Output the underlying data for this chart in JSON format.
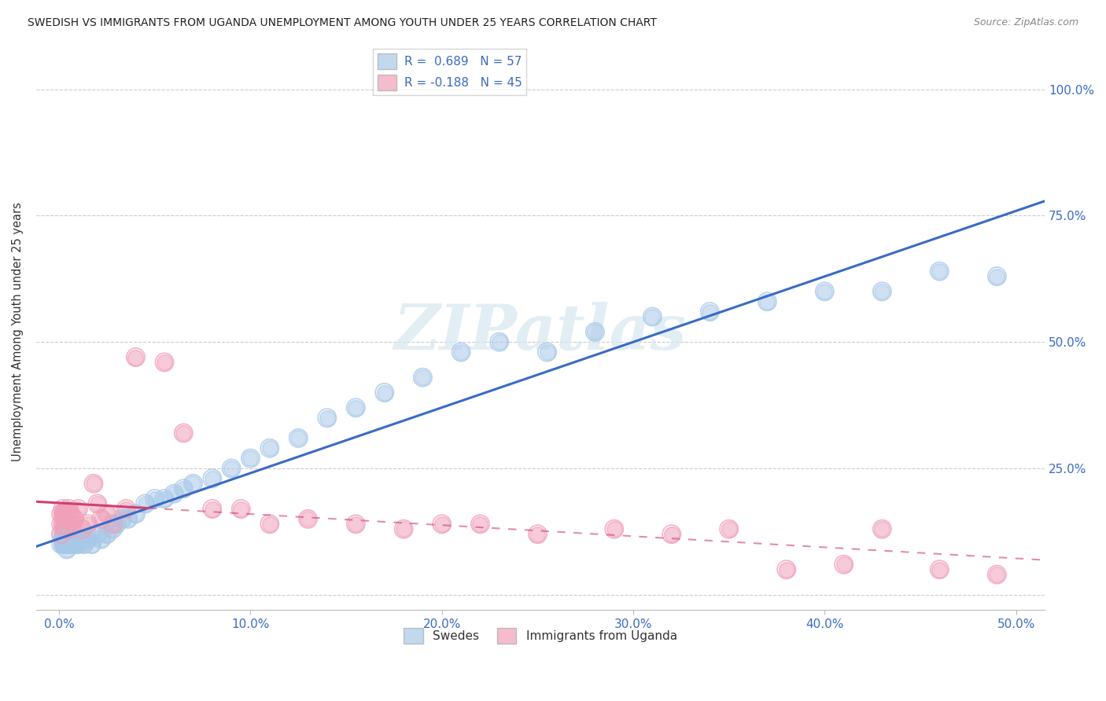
{
  "title": "SWEDISH VS IMMIGRANTS FROM UGANDA UNEMPLOYMENT AMONG YOUTH UNDER 25 YEARS CORRELATION CHART",
  "source": "Source: ZipAtlas.com",
  "ylabel_label": "Unemployment Among Youth under 25 years",
  "legend_bottom": [
    "Swedes",
    "Immigrants from Uganda"
  ],
  "swedes_color": "#a8c8e8",
  "uganda_color": "#f0a0b8",
  "swedes_line_color": "#3a6bc4",
  "uganda_line_color": "#d04070",
  "swedes_R": 0.689,
  "swedes_N": 57,
  "uganda_R": -0.188,
  "uganda_N": 45,
  "watermark": "ZIPatlas",
  "swedes_x": [
    0.001,
    0.001,
    0.002,
    0.002,
    0.003,
    0.003,
    0.003,
    0.004,
    0.004,
    0.004,
    0.005,
    0.005,
    0.006,
    0.006,
    0.007,
    0.008,
    0.009,
    0.01,
    0.011,
    0.012,
    0.013,
    0.015,
    0.017,
    0.02,
    0.022,
    0.025,
    0.028,
    0.03,
    0.033,
    0.036,
    0.04,
    0.045,
    0.05,
    0.055,
    0.06,
    0.065,
    0.07,
    0.08,
    0.09,
    0.1,
    0.11,
    0.125,
    0.14,
    0.155,
    0.17,
    0.19,
    0.21,
    0.23,
    0.255,
    0.28,
    0.31,
    0.34,
    0.37,
    0.4,
    0.43,
    0.46,
    0.49
  ],
  "swedes_y": [
    0.1,
    0.12,
    0.1,
    0.11,
    0.1,
    0.1,
    0.11,
    0.1,
    0.09,
    0.1,
    0.1,
    0.11,
    0.1,
    0.1,
    0.1,
    0.1,
    0.1,
    0.1,
    0.11,
    0.11,
    0.1,
    0.11,
    0.1,
    0.12,
    0.11,
    0.12,
    0.13,
    0.14,
    0.15,
    0.15,
    0.16,
    0.18,
    0.19,
    0.19,
    0.2,
    0.21,
    0.22,
    0.23,
    0.25,
    0.27,
    0.29,
    0.31,
    0.35,
    0.37,
    0.4,
    0.43,
    0.48,
    0.5,
    0.48,
    0.52,
    0.55,
    0.56,
    0.58,
    0.6,
    0.6,
    0.64,
    0.63
  ],
  "uganda_x": [
    0.001,
    0.001,
    0.001,
    0.002,
    0.002,
    0.002,
    0.003,
    0.003,
    0.003,
    0.004,
    0.004,
    0.005,
    0.005,
    0.006,
    0.007,
    0.008,
    0.01,
    0.012,
    0.015,
    0.018,
    0.02,
    0.022,
    0.025,
    0.028,
    0.035,
    0.04,
    0.055,
    0.065,
    0.08,
    0.095,
    0.11,
    0.13,
    0.155,
    0.18,
    0.2,
    0.22,
    0.25,
    0.29,
    0.32,
    0.35,
    0.38,
    0.41,
    0.43,
    0.46,
    0.49
  ],
  "uganda_y": [
    0.14,
    0.16,
    0.12,
    0.17,
    0.14,
    0.16,
    0.13,
    0.15,
    0.16,
    0.14,
    0.15,
    0.17,
    0.13,
    0.16,
    0.14,
    0.15,
    0.17,
    0.13,
    0.14,
    0.22,
    0.18,
    0.15,
    0.16,
    0.14,
    0.17,
    0.47,
    0.46,
    0.32,
    0.17,
    0.17,
    0.14,
    0.15,
    0.14,
    0.13,
    0.14,
    0.14,
    0.12,
    0.13,
    0.12,
    0.13,
    0.05,
    0.06,
    0.13,
    0.05,
    0.04
  ],
  "xlim": [
    -0.012,
    0.515
  ],
  "ylim": [
    -0.03,
    1.07
  ],
  "x_tick_vals": [
    0.0,
    0.1,
    0.2,
    0.3,
    0.4,
    0.5
  ],
  "x_tick_labels": [
    "0.0%",
    "10.0%",
    "20.0%",
    "30.0%",
    "40.0%",
    "50.0%"
  ],
  "y_tick_vals": [
    0.0,
    0.25,
    0.5,
    0.75,
    1.0
  ],
  "y_tick_labels": [
    "",
    "25.0%",
    "50.0%",
    "75.0%",
    "100.0%"
  ],
  "background_color": "#ffffff",
  "grid_color": "#cccccc",
  "title_color": "#222222",
  "axis_tick_color": "#3a6bc4",
  "right_label_color": "#3a6bc4",
  "swedes_line_x_start": -0.012,
  "swedes_line_x_end": 0.515,
  "uganda_line_x_start": -0.012,
  "uganda_line_x_end": 0.3
}
